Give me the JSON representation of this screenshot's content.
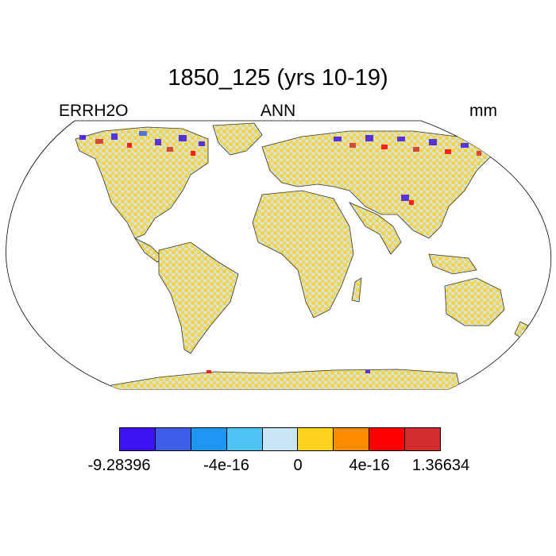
{
  "title": "1850_125 (yrs 10-19)",
  "left_label": "ERRH2O",
  "center_label": "ANN",
  "right_label": "mm",
  "colorbar": {
    "colors": [
      "#3c14f5",
      "#3c5ee6",
      "#1e96f5",
      "#50c3f5",
      "#c8e6f5",
      "#ffd21e",
      "#ff8c00",
      "#ff0000",
      "#d22d2d"
    ],
    "tick_labels": [
      "-9.28396",
      "-4e-16",
      "0",
      "4e-16",
      "1.36634"
    ]
  },
  "map": {
    "projection": "robinson",
    "variable": "ERRH2O",
    "value_range": [
      -9.28396,
      1.36634
    ]
  }
}
